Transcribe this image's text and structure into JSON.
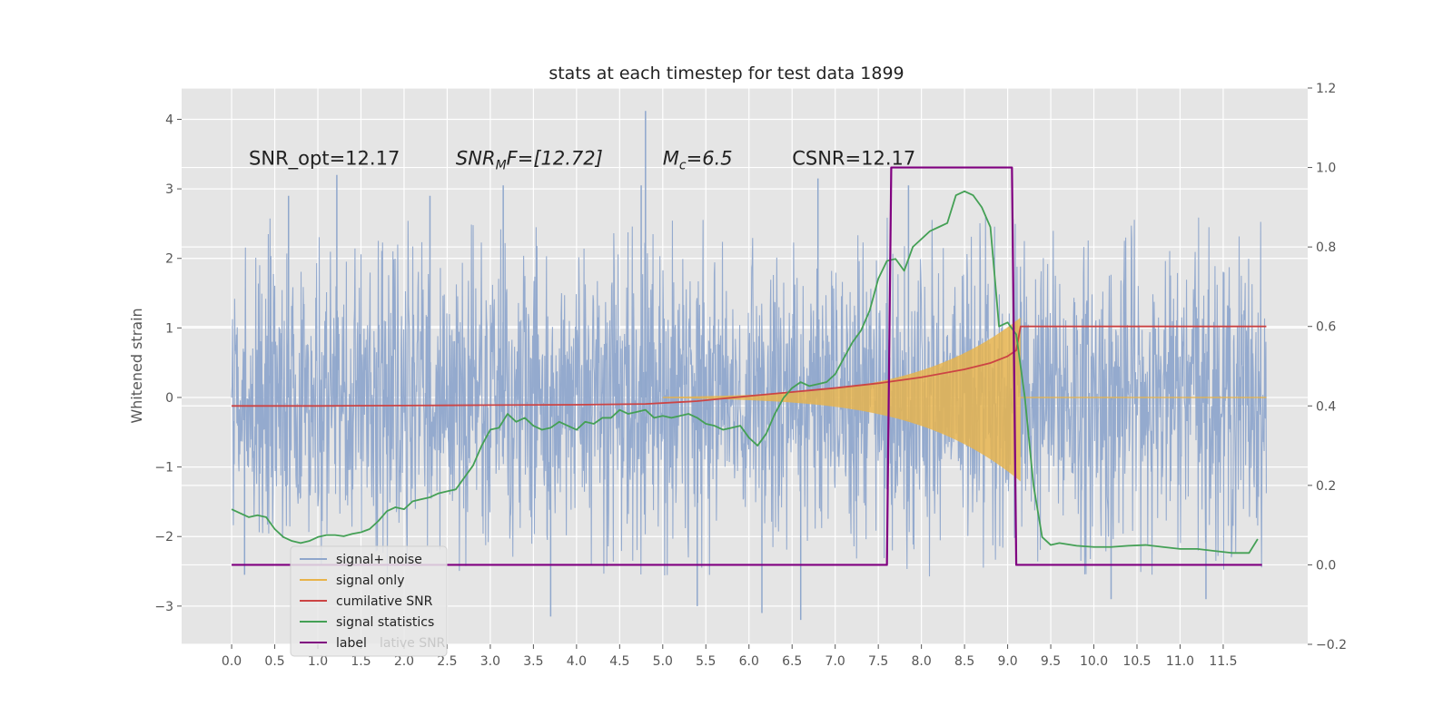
{
  "chart_data": {
    "type": "line",
    "title": "stats at each timestep for test data 1899",
    "ylabel": "Whitened strain",
    "xlim": [
      -0.58,
      12.48
    ],
    "ylim": [
      -3.55,
      4.45
    ],
    "y2lim": [
      -0.2,
      1.2
    ],
    "xticks": [
      0.0,
      0.5,
      1.0,
      1.5,
      2.0,
      2.5,
      3.0,
      3.5,
      4.0,
      4.5,
      5.0,
      5.5,
      6.0,
      6.5,
      7.0,
      7.5,
      8.0,
      8.5,
      9.0,
      9.5,
      10.0,
      10.5,
      11.0,
      11.5
    ],
    "xtick_labels": [
      "0.0",
      "0.5",
      "1.0",
      "1.5",
      "2.0",
      "2.5",
      "3.0",
      "3.5",
      "4.0",
      "4.5",
      "5.0",
      "5.5",
      "6.0",
      "6.5",
      "7.0",
      "7.5",
      "8.0",
      "8.5",
      "9.0",
      "9.5",
      "10.0",
      "10.5",
      "11.0",
      "11.5"
    ],
    "yticks": [
      -3,
      -2,
      -1,
      0,
      1,
      2,
      3,
      4
    ],
    "ytick_labels": [
      "−3",
      "−2",
      "−1",
      "0",
      "1",
      "2",
      "3",
      "4"
    ],
    "y2ticks": [
      -0.2,
      0.0,
      0.2,
      0.4,
      0.6,
      0.8,
      1.0,
      1.2
    ],
    "y2tick_labels": [
      "−0.2",
      "0.0",
      "0.2",
      "0.4",
      "0.6",
      "0.8",
      "1.0",
      "1.2"
    ],
    "grid": true,
    "legend_position": "lower-left",
    "annotations": [
      {
        "prefix": "SNR_opt=12.17",
        "x": 0.2,
        "y": 3.35
      },
      {
        "prefix": "SNR",
        "sub": "M",
        "suffix": "F=[12.72]",
        "x": 2.6,
        "y": 3.35,
        "italic": true
      },
      {
        "prefix": "M",
        "sub": "c",
        "suffix": "=6.5",
        "x": 5.0,
        "y": 3.35,
        "italic": true
      },
      {
        "prefix": "CSNR=12.17",
        "x": 6.5,
        "y": 3.35
      }
    ],
    "series": [
      {
        "name": "signal+ noise",
        "color": "#8fa7cc",
        "axis": "left",
        "kind": "noise",
        "x_range": [
          0.0,
          12.0
        ],
        "spikes": [
          {
            "x": 0.66,
            "y": 2.9
          },
          {
            "x": 1.22,
            "y": 3.2
          },
          {
            "x": 3.15,
            "y": 3.05
          },
          {
            "x": 4.8,
            "y": 4.12
          },
          {
            "x": 4.75,
            "y": 3.05
          },
          {
            "x": 7.85,
            "y": 3.05
          },
          {
            "x": 6.8,
            "y": 3.15
          },
          {
            "x": 3.7,
            "y": -3.15
          },
          {
            "x": 6.6,
            "y": -3.2
          },
          {
            "x": 5.4,
            "y": -3.0
          },
          {
            "x": 6.15,
            "y": -3.1
          },
          {
            "x": 10.2,
            "y": -2.9
          },
          {
            "x": 11.3,
            "y": -2.9
          },
          {
            "x": 0.15,
            "y": -2.55
          },
          {
            "x": 2.3,
            "y": 2.9
          }
        ]
      },
      {
        "name": "signal only",
        "color": "#e8b34a",
        "axis": "left",
        "kind": "chirp",
        "t_start": 5.0,
        "t_merge": 9.15,
        "amp_start": 0.01,
        "amp_merge": 0.95
      },
      {
        "name": "cumilative SNR",
        "color": "#cc4444",
        "axis": "right",
        "x": [
          0.0,
          1.0,
          2.0,
          3.0,
          4.0,
          4.8,
          5.4,
          6.0,
          6.5,
          7.0,
          7.5,
          8.0,
          8.5,
          8.8,
          9.0,
          9.1,
          9.15,
          12.0
        ],
        "values": [
          0.4,
          0.4,
          0.401,
          0.402,
          0.403,
          0.405,
          0.412,
          0.425,
          0.435,
          0.445,
          0.457,
          0.472,
          0.492,
          0.508,
          0.525,
          0.54,
          0.6,
          0.6
        ]
      },
      {
        "name": "signal statistics",
        "color": "#44a055",
        "axis": "right",
        "x": [
          0.0,
          0.1,
          0.2,
          0.3,
          0.4,
          0.5,
          0.6,
          0.7,
          0.8,
          0.9,
          1.0,
          1.1,
          1.2,
          1.3,
          1.4,
          1.5,
          1.6,
          1.7,
          1.8,
          1.9,
          2.0,
          2.1,
          2.2,
          2.3,
          2.4,
          2.5,
          2.6,
          2.7,
          2.8,
          2.9,
          3.0,
          3.1,
          3.2,
          3.3,
          3.4,
          3.5,
          3.6,
          3.7,
          3.8,
          3.9,
          4.0,
          4.1,
          4.2,
          4.3,
          4.4,
          4.5,
          4.6,
          4.7,
          4.8,
          4.9,
          5.0,
          5.1,
          5.2,
          5.3,
          5.4,
          5.5,
          5.6,
          5.7,
          5.8,
          5.9,
          6.0,
          6.1,
          6.2,
          6.3,
          6.4,
          6.5,
          6.6,
          6.7,
          6.8,
          6.9,
          7.0,
          7.1,
          7.2,
          7.3,
          7.4,
          7.5,
          7.6,
          7.7,
          7.8,
          7.9,
          8.0,
          8.1,
          8.2,
          8.3,
          8.4,
          8.5,
          8.6,
          8.7,
          8.8,
          8.9,
          9.0,
          9.1,
          9.2,
          9.3,
          9.4,
          9.5,
          9.6,
          9.8,
          10.0,
          10.2,
          10.4,
          10.6,
          10.8,
          11.0,
          11.2,
          11.4,
          11.6,
          11.8,
          11.9
        ],
        "values": [
          0.14,
          0.13,
          0.12,
          0.125,
          0.12,
          0.09,
          0.07,
          0.06,
          0.055,
          0.06,
          0.07,
          0.075,
          0.075,
          0.072,
          0.078,
          0.082,
          0.09,
          0.11,
          0.135,
          0.145,
          0.14,
          0.16,
          0.165,
          0.17,
          0.18,
          0.185,
          0.19,
          0.22,
          0.25,
          0.3,
          0.34,
          0.345,
          0.38,
          0.36,
          0.37,
          0.35,
          0.34,
          0.345,
          0.36,
          0.35,
          0.34,
          0.36,
          0.355,
          0.37,
          0.37,
          0.39,
          0.38,
          0.385,
          0.39,
          0.37,
          0.375,
          0.37,
          0.375,
          0.38,
          0.37,
          0.355,
          0.35,
          0.34,
          0.345,
          0.35,
          0.32,
          0.3,
          0.33,
          0.38,
          0.42,
          0.445,
          0.46,
          0.45,
          0.455,
          0.46,
          0.48,
          0.52,
          0.56,
          0.59,
          0.64,
          0.72,
          0.765,
          0.77,
          0.74,
          0.8,
          0.82,
          0.84,
          0.85,
          0.86,
          0.93,
          0.94,
          0.93,
          0.9,
          0.85,
          0.6,
          0.61,
          0.58,
          0.42,
          0.2,
          0.07,
          0.05,
          0.055,
          0.048,
          0.045,
          0.045,
          0.048,
          0.05,
          0.045,
          0.04,
          0.04,
          0.035,
          0.03,
          0.03,
          0.065
        ]
      },
      {
        "name": "label",
        "color": "#800080",
        "axis": "right",
        "x": [
          0.0,
          7.6,
          7.65,
          9.05,
          9.1,
          11.95
        ],
        "values": [
          0.0,
          0.0,
          1.0,
          1.0,
          0.0,
          0.0
        ]
      }
    ],
    "legend": [
      {
        "label": "signal+ noise",
        "color": "#8fa7cc"
      },
      {
        "label": "signal only",
        "color": "#e8b34a"
      },
      {
        "label": "cumilative SNR",
        "color": "#cc4444"
      },
      {
        "label": "signal statistics",
        "color": "#44a055"
      },
      {
        "label": "label",
        "color": "#800080"
      }
    ],
    "legend_ghost_text": "lative SNR"
  }
}
